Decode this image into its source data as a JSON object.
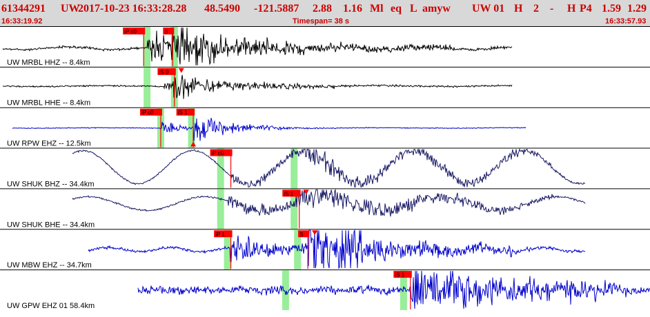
{
  "header": {
    "event_id": "61344291",
    "network": "UW",
    "datetime": "2017-10-23 16:33:28.28",
    "latitude": "48.5490",
    "longitude": "-121.5887",
    "depth": "2.88",
    "magnitude": "1.16",
    "mag_type": "Ml",
    "event_type": "eq",
    "flag_l": "L",
    "author": "amyw",
    "source": "UW 01",
    "flag_h": "H",
    "count": "2",
    "dash": "-",
    "flag_h2": "H",
    "phase_code": "P4",
    "val1": "1.59",
    "val2": "1.29",
    "start_time": "16:33:19.92",
    "timespan": "Timespan=  38 s",
    "end_time": "16:33:57.93"
  },
  "colors": {
    "header_bg": "#d8d8d8",
    "header_text": "#cc0000",
    "trace_black": "#000000",
    "trace_blue": "#0000cc",
    "trace_navy": "#1a1a66",
    "pick_red": "#ff0000",
    "window_green": "#99ee99"
  },
  "channels": [
    {
      "label": "UW MRBL HHZ -- 8.4km",
      "color": "black",
      "picks": [
        {
          "label": "iP c0",
          "time": 8.4
        },
        {
          "label": "S",
          "time": 10.1
        }
      ],
      "windows": [
        8.6,
        10.2
      ]
    },
    {
      "label": "UW MRBL HHE -- 8.4km",
      "color": "black",
      "picks": [
        {
          "label": "iS 0",
          "time": 10.2,
          "marker": "down"
        }
      ],
      "windows": [
        8.6,
        10.2
      ]
    },
    {
      "label": "UW RPW EHZ -- 12.5km",
      "color": "blue",
      "picks": [
        {
          "label": "iP c0",
          "time": 9.4
        },
        {
          "label": "iS 1",
          "time": 11.3,
          "marker": "up"
        }
      ],
      "windows": [
        9.4,
        11.2
      ]
    },
    {
      "label": "UW SHUK BHZ -- 34.4km",
      "color": "navy",
      "picks": [
        {
          "label": "iP c0",
          "time": 13.5
        }
      ],
      "windows": [
        12.9,
        17.2
      ]
    },
    {
      "label": "UW SHUK BHE -- 34.4km",
      "color": "navy",
      "picks": [
        {
          "label": "iS 1",
          "time": 17.5,
          "marker": "down"
        }
      ],
      "windows": [
        12.9,
        17.2
      ]
    },
    {
      "label": "UW MBW EHZ -- 34.7km",
      "color": "blue",
      "picks": [
        {
          "label": "iP 1",
          "time": 13.5
        },
        {
          "label": "S",
          "time": 18.0,
          "marker": "down"
        }
      ],
      "windows": [
        13.3,
        17.4
      ]
    },
    {
      "label": "UW GPW EHZ 01 58.4km",
      "color": "blue",
      "picks": [
        {
          "label": "iS 1",
          "time": 24.0
        }
      ],
      "windows": [
        16.7,
        23.6
      ]
    }
  ]
}
